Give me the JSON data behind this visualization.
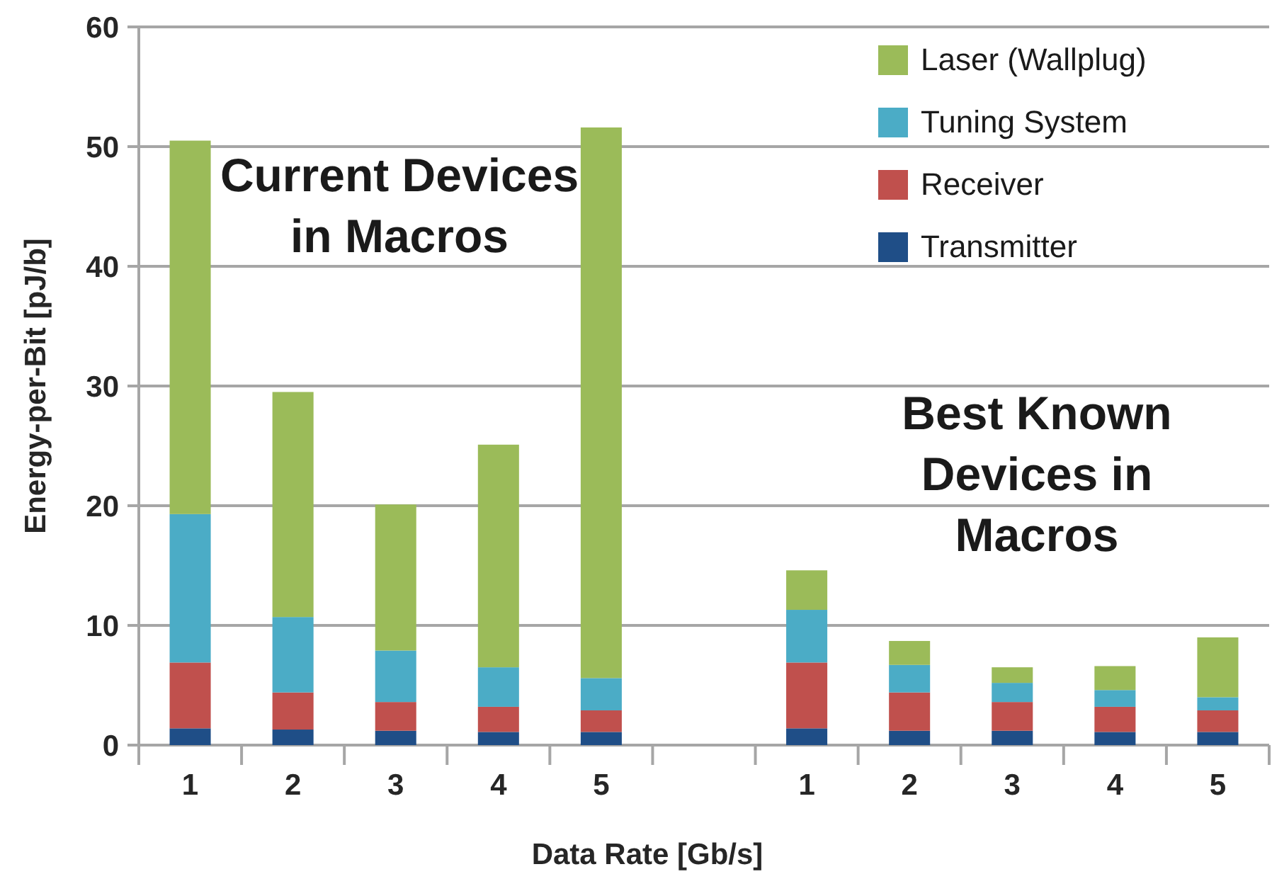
{
  "chart_data": {
    "type": "bar",
    "stacked": true,
    "xlabel": "Data Rate [Gb/s]",
    "ylabel": "Energy-per-Bit [pJ/b]",
    "categories": [
      "1",
      "2",
      "3",
      "4",
      "5",
      null,
      "1",
      "2",
      "3",
      "4",
      "5"
    ],
    "series": [
      {
        "name": "Transmitter",
        "color": "#1f4e87",
        "values": [
          1.4,
          1.3,
          1.2,
          1.1,
          1.1,
          null,
          1.4,
          1.2,
          1.2,
          1.1,
          1.1
        ]
      },
      {
        "name": "Receiver",
        "color": "#c0504d",
        "values": [
          5.5,
          3.1,
          2.4,
          2.1,
          1.8,
          null,
          5.5,
          3.2,
          2.4,
          2.1,
          1.8
        ]
      },
      {
        "name": "Tuning System",
        "color": "#4bacc6",
        "values": [
          12.4,
          6.3,
          4.3,
          3.3,
          2.7,
          null,
          4.4,
          2.3,
          1.6,
          1.4,
          1.1
        ]
      },
      {
        "name": "Laser (Wallplug)",
        "color": "#9bbb59",
        "values": [
          31.2,
          18.8,
          12.2,
          18.6,
          46.0,
          null,
          3.3,
          2.0,
          1.3,
          2.0,
          5.0
        ]
      }
    ],
    "ylim": [
      0,
      60
    ],
    "yticks": [
      0,
      10,
      20,
      30,
      40,
      50,
      60
    ],
    "grid": "y",
    "legend": "top right",
    "annotations": [
      "Current Devices in Macros",
      "Best Known Devices in Macros"
    ]
  }
}
